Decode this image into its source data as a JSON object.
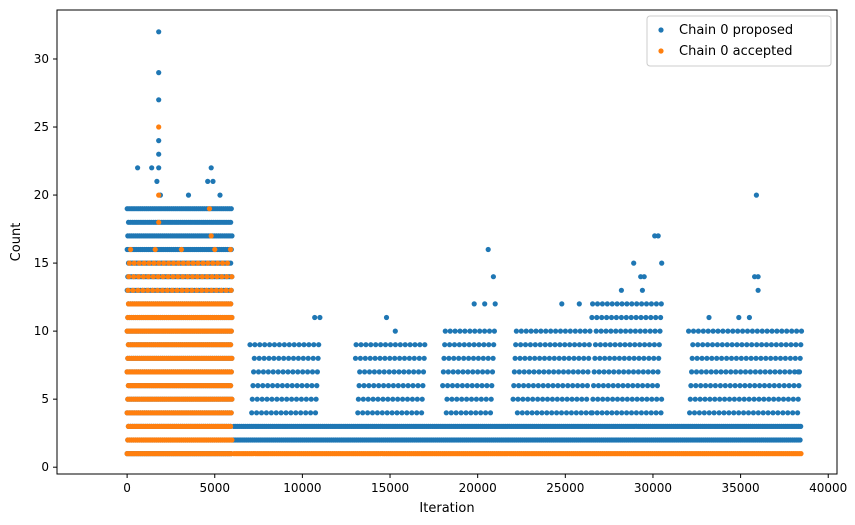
{
  "chart_data": {
    "type": "scatter",
    "xlabel": "Iteration",
    "ylabel": "Count",
    "xlim": [
      -4000,
      40500
    ],
    "ylim": [
      -0.5,
      33.6
    ],
    "x_ticks": [
      0,
      5000,
      10000,
      15000,
      20000,
      25000,
      30000,
      35000,
      40000
    ],
    "x_tick_labels": [
      "0",
      "5000",
      "10000",
      "15000",
      "20000",
      "25000",
      "30000",
      "35000",
      "40000"
    ],
    "y_ticks": [
      0,
      5,
      10,
      15,
      20,
      25,
      30
    ],
    "y_tick_labels": [
      "0",
      "5",
      "10",
      "15",
      "20",
      "25",
      "30"
    ],
    "grid": false,
    "legend_position": "top-right",
    "series": [
      {
        "name": "Chain 0 proposed",
        "color": "#1f77b4",
        "marker": "circle",
        "x_max": 38500,
        "segments": [
          {
            "x_start": 0,
            "x_end": 6000,
            "y_values": [
              1,
              2,
              3,
              4,
              5,
              6,
              7,
              8,
              9,
              10,
              11,
              12,
              13,
              14,
              15,
              16,
              17,
              18,
              19
            ],
            "density": "dense"
          },
          {
            "x_start": 6000,
            "x_end": 38500,
            "y_values": [
              2,
              3
            ],
            "density": "dense"
          },
          {
            "x_start": 7000,
            "x_end": 11000,
            "y_values": [
              4,
              5,
              6,
              7,
              8,
              9
            ],
            "density": "sparse"
          },
          {
            "x_start": 13000,
            "x_end": 17000,
            "y_values": [
              4,
              5,
              6,
              7,
              8,
              9
            ],
            "density": "sparse"
          },
          {
            "x_start": 18000,
            "x_end": 21000,
            "y_values": [
              4,
              5,
              6,
              7,
              8,
              9,
              10
            ],
            "density": "sparse"
          },
          {
            "x_start": 22000,
            "x_end": 26500,
            "y_values": [
              4,
              5,
              6,
              7,
              8,
              9,
              10
            ],
            "density": "sparse"
          },
          {
            "x_start": 26500,
            "x_end": 30500,
            "y_values": [
              4,
              5,
              6,
              7,
              8,
              9,
              10,
              11,
              12
            ],
            "density": "sparse"
          },
          {
            "x_start": 32000,
            "x_end": 38500,
            "y_values": [
              4,
              5,
              6,
              7,
              8,
              9,
              10
            ],
            "density": "sparse"
          }
        ],
        "points": [
          {
            "x": 1800,
            "y": 32
          },
          {
            "x": 1800,
            "y": 29
          },
          {
            "x": 1800,
            "y": 27
          },
          {
            "x": 1800,
            "y": 24
          },
          {
            "x": 1800,
            "y": 23
          },
          {
            "x": 1800,
            "y": 22
          },
          {
            "x": 1400,
            "y": 22
          },
          {
            "x": 600,
            "y": 22
          },
          {
            "x": 4800,
            "y": 22
          },
          {
            "x": 1700,
            "y": 21
          },
          {
            "x": 4600,
            "y": 21
          },
          {
            "x": 4900,
            "y": 21
          },
          {
            "x": 1900,
            "y": 20
          },
          {
            "x": 3500,
            "y": 20
          },
          {
            "x": 5300,
            "y": 20
          },
          {
            "x": 10700,
            "y": 11
          },
          {
            "x": 11000,
            "y": 11
          },
          {
            "x": 14800,
            "y": 11
          },
          {
            "x": 15300,
            "y": 10
          },
          {
            "x": 20600,
            "y": 16
          },
          {
            "x": 20900,
            "y": 14
          },
          {
            "x": 21000,
            "y": 12
          },
          {
            "x": 19800,
            "y": 12
          },
          {
            "x": 20400,
            "y": 12
          },
          {
            "x": 24800,
            "y": 12
          },
          {
            "x": 25800,
            "y": 12
          },
          {
            "x": 28200,
            "y": 13
          },
          {
            "x": 28900,
            "y": 15
          },
          {
            "x": 29300,
            "y": 14
          },
          {
            "x": 29500,
            "y": 14
          },
          {
            "x": 29400,
            "y": 13
          },
          {
            "x": 30100,
            "y": 17
          },
          {
            "x": 30300,
            "y": 17
          },
          {
            "x": 30500,
            "y": 15
          },
          {
            "x": 33200,
            "y": 11
          },
          {
            "x": 34900,
            "y": 11
          },
          {
            "x": 35500,
            "y": 11
          },
          {
            "x": 35900,
            "y": 20
          },
          {
            "x": 35800,
            "y": 14
          },
          {
            "x": 36000,
            "y": 14
          },
          {
            "x": 36000,
            "y": 13
          },
          {
            "x": 38300,
            "y": 7
          }
        ]
      },
      {
        "name": "Chain 0 accepted",
        "color": "#ff7f0e",
        "marker": "circle",
        "x_max": 38500,
        "segments": [
          {
            "x_start": 0,
            "x_end": 6000,
            "y_values": [
              1,
              2,
              3,
              4,
              5,
              6,
              7,
              8,
              9,
              10,
              11,
              12
            ],
            "density": "dense"
          },
          {
            "x_start": 0,
            "x_end": 6000,
            "y_values": [
              13,
              14,
              15
            ],
            "density": "sparse"
          },
          {
            "x_start": 6000,
            "x_end": 38500,
            "y_values": [
              1
            ],
            "density": "dense"
          }
        ],
        "points": [
          {
            "x": 1800,
            "y": 25
          },
          {
            "x": 1800,
            "y": 20
          },
          {
            "x": 1800,
            "y": 18
          },
          {
            "x": 4700,
            "y": 19
          },
          {
            "x": 4800,
            "y": 17
          },
          {
            "x": 200,
            "y": 16
          },
          {
            "x": 1600,
            "y": 16
          },
          {
            "x": 3100,
            "y": 16
          },
          {
            "x": 5000,
            "y": 16
          },
          {
            "x": 5900,
            "y": 16
          }
        ]
      }
    ]
  }
}
